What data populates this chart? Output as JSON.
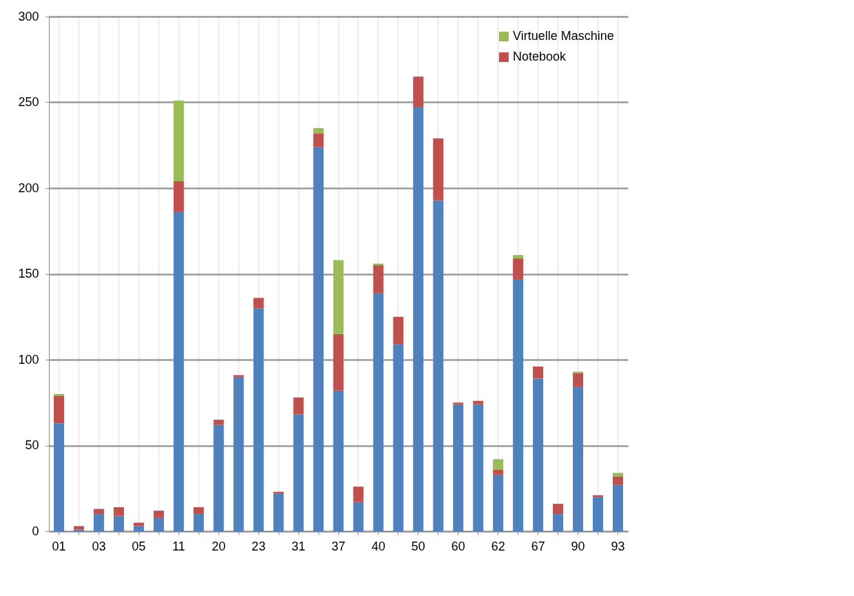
{
  "chart_data": {
    "type": "bar",
    "stacked": true,
    "categories": [
      "01",
      null,
      "03",
      null,
      "05",
      null,
      "11",
      null,
      "20",
      null,
      "23",
      null,
      "31",
      null,
      "37",
      null,
      "40",
      null,
      "50",
      null,
      "60",
      null,
      "62",
      null,
      "67",
      null,
      "90",
      null,
      "93"
    ],
    "series": [
      {
        "color": "#4f81bd",
        "values": [
          63,
          1,
          10,
          9,
          3,
          8,
          186,
          10,
          62,
          90,
          130,
          22,
          68,
          224,
          82,
          17,
          139,
          109,
          247,
          193,
          74,
          74,
          33,
          147,
          89,
          10,
          84,
          20,
          27
        ]
      },
      {
        "name": "Notebook",
        "color": "#c0504d",
        "values": [
          16,
          2,
          3,
          5,
          2,
          4,
          18,
          4,
          3,
          1,
          6,
          1,
          10,
          8,
          33,
          9,
          16,
          16,
          18,
          36,
          1,
          2,
          3,
          12,
          7,
          6,
          8,
          1,
          5
        ]
      },
      {
        "name": "Virtuelle Maschine",
        "color": "#9bbb59",
        "values": [
          1,
          null,
          null,
          null,
          null,
          null,
          47,
          null,
          null,
          null,
          null,
          null,
          null,
          3,
          43,
          null,
          1,
          null,
          null,
          null,
          null,
          null,
          6,
          2,
          null,
          null,
          1,
          null,
          2
        ]
      }
    ],
    "ylim": [
      0,
      300
    ],
    "yticks": [
      0,
      50,
      100,
      150,
      200,
      250,
      300
    ],
    "grid": true,
    "legend": "top right"
  }
}
